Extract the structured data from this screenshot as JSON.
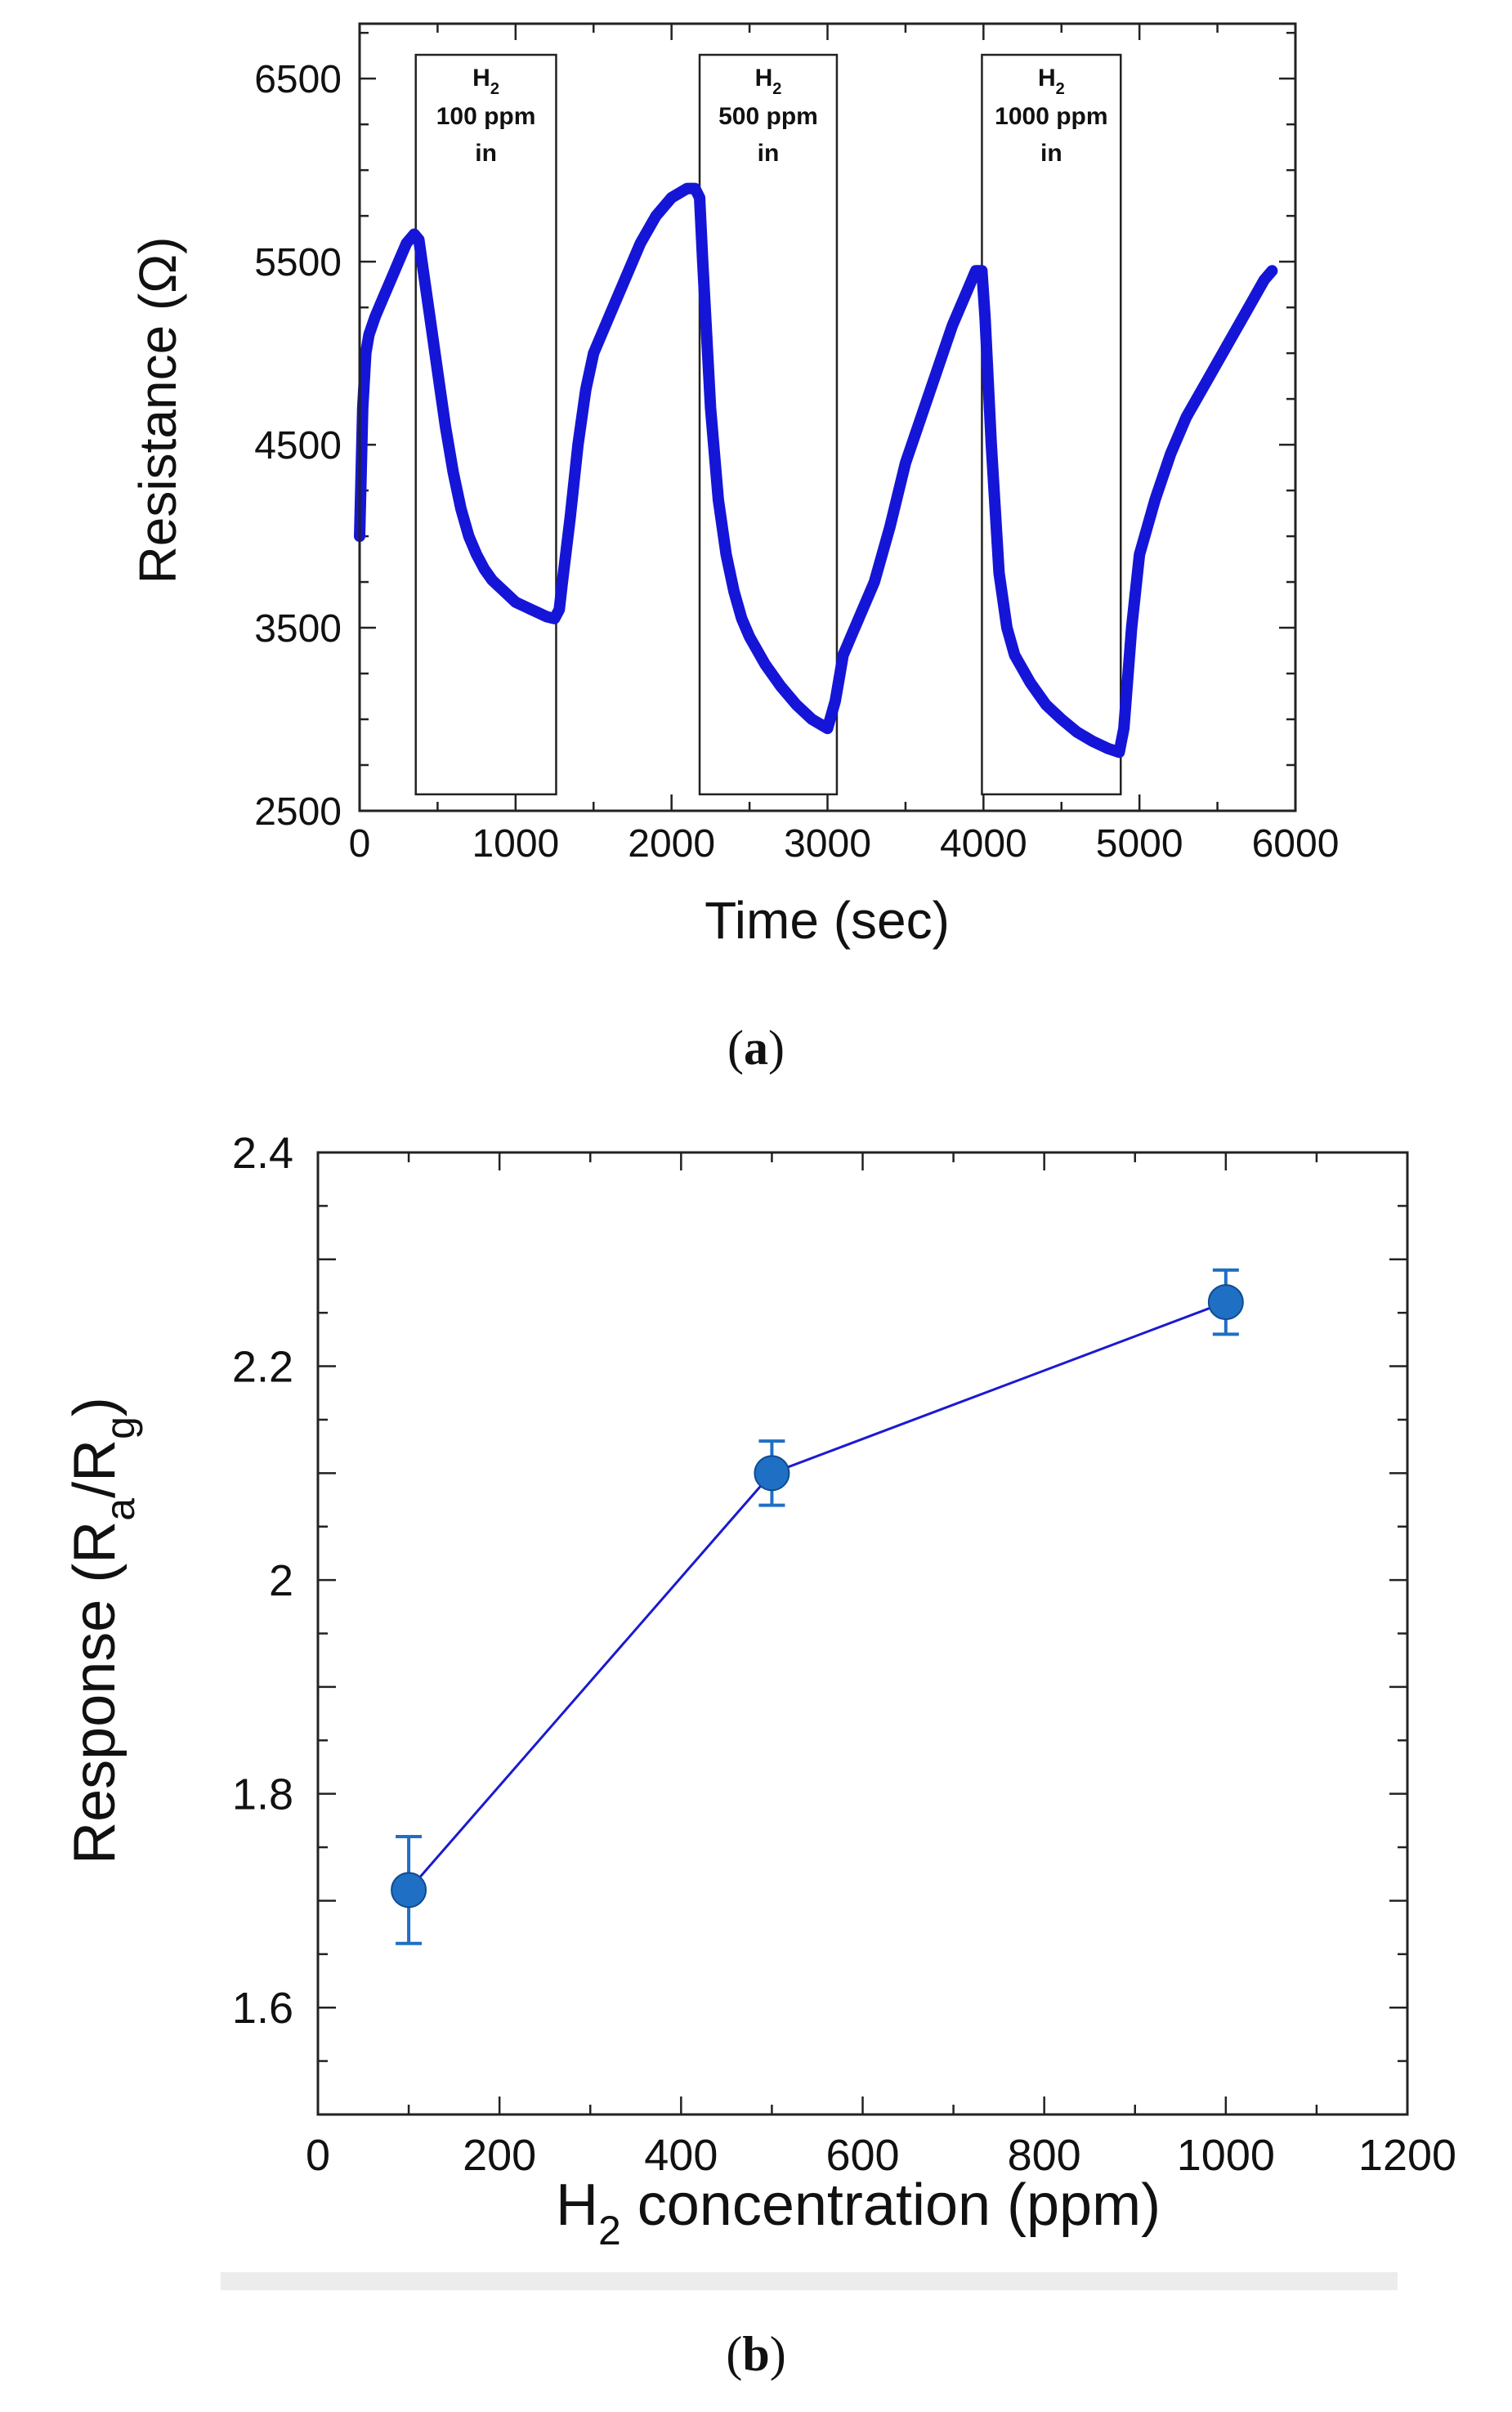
{
  "chart_data": [
    {
      "type": "line",
      "panel_label": "a",
      "xlabel": "Time (sec)",
      "ylabel": "Resistance (Ω)",
      "xlim": [
        0,
        6000
      ],
      "ylim": [
        2500,
        6800
      ],
      "xticks": [
        "0",
        "1000",
        "2000",
        "3000",
        "4000",
        "5000",
        "6000"
      ],
      "yticks": [
        "2500",
        "3500",
        "4500",
        "5500",
        "6500"
      ],
      "line_color": "#1515d8",
      "exposure_boxes": [
        {
          "gas": "H",
          "sub": "2",
          "conc": "100 ppm",
          "state": "in",
          "t_start": 360,
          "t_end": 1260
        },
        {
          "gas": "H",
          "sub": "2",
          "conc": "500 ppm",
          "state": "in",
          "t_start": 2180,
          "t_end": 3060
        },
        {
          "gas": "H",
          "sub": "2",
          "conc": "1000 ppm",
          "state": "in",
          "t_start": 3990,
          "t_end": 4880
        }
      ],
      "series": [
        {
          "name": "Resistance",
          "x": [
            0,
            20,
            40,
            60,
            100,
            150,
            200,
            250,
            300,
            350,
            380,
            400,
            450,
            500,
            550,
            600,
            650,
            700,
            750,
            800,
            850,
            900,
            950,
            1000,
            1050,
            1100,
            1150,
            1200,
            1250,
            1280,
            1300,
            1350,
            1400,
            1450,
            1500,
            1600,
            1700,
            1800,
            1900,
            2000,
            2100,
            2150,
            2180,
            2200,
            2250,
            2300,
            2350,
            2400,
            2450,
            2500,
            2600,
            2700,
            2800,
            2900,
            3000,
            3050,
            3080,
            3100,
            3150,
            3200,
            3300,
            3400,
            3500,
            3600,
            3700,
            3800,
            3900,
            3950,
            3990,
            4010,
            4050,
            4100,
            4150,
            4200,
            4300,
            4400,
            4500,
            4600,
            4700,
            4800,
            4870,
            4900,
            4950,
            5000,
            5100,
            5200,
            5300,
            5400,
            5500,
            5600,
            5700,
            5800,
            5850
          ],
          "y": [
            4000,
            4700,
            5000,
            5100,
            5200,
            5300,
            5400,
            5500,
            5600,
            5650,
            5620,
            5500,
            5200,
            4900,
            4600,
            4350,
            4150,
            4000,
            3900,
            3820,
            3760,
            3720,
            3680,
            3640,
            3620,
            3600,
            3580,
            3560,
            3550,
            3600,
            3750,
            4100,
            4500,
            4800,
            5000,
            5200,
            5400,
            5600,
            5750,
            5850,
            5900,
            5900,
            5850,
            5500,
            4700,
            4200,
            3900,
            3700,
            3550,
            3450,
            3300,
            3180,
            3080,
            3000,
            2950,
            3100,
            3250,
            3350,
            3450,
            3550,
            3750,
            4050,
            4400,
            4650,
            4900,
            5150,
            5350,
            5450,
            5450,
            5200,
            4500,
            3800,
            3500,
            3350,
            3200,
            3080,
            3000,
            2930,
            2880,
            2840,
            2820,
            2950,
            3500,
            3900,
            4200,
            4450,
            4650,
            4800,
            4950,
            5100,
            5250,
            5400,
            5450
          ]
        }
      ]
    },
    {
      "type": "line",
      "panel_label": "b",
      "xlabel_main": "H",
      "xlabel_sub": "2",
      "xlabel_rest": " concentration (ppm)",
      "ylabel_main": "Response (R",
      "ylabel_sub1": "a",
      "ylabel_mid": "/R",
      "ylabel_sub2": "g",
      "ylabel_end": ")",
      "xlim": [
        0,
        1200
      ],
      "ylim": [
        1.5,
        2.4
      ],
      "xticks": [
        "0",
        "200",
        "400",
        "600",
        "800",
        "1000",
        "1200"
      ],
      "yticks": [
        "1.6",
        "1.8",
        "2",
        "2.2",
        "2.4"
      ],
      "line_color": "#1a1ad0",
      "marker_color": "#1f6fc4",
      "series": [
        {
          "name": "Response",
          "x": [
            100,
            500,
            1000
          ],
          "y": [
            1.71,
            2.1,
            2.26
          ],
          "error": [
            0.05,
            0.03,
            0.03
          ]
        }
      ]
    }
  ]
}
